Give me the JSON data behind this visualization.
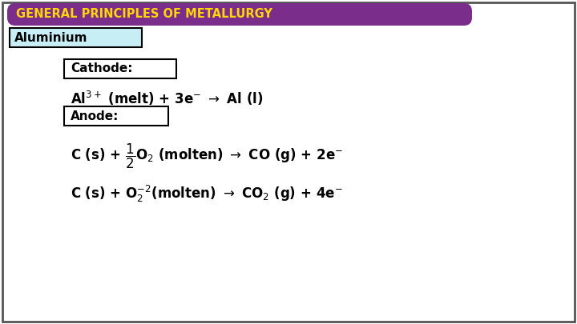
{
  "title": "GENERAL PRINCIPLES OF METALLURGY",
  "title_bg": "#7B2D8B",
  "title_color": "#FFD700",
  "aluminium_label": "Aluminium",
  "aluminium_bg": "#C8EEF5",
  "cathode_label": "Cathode:",
  "anode_label": "Anode:",
  "box_bg": "#FFFFFF",
  "box_edge": "#000000",
  "outer_bg": "#FFFFFF",
  "outer_edge": "#555555",
  "text_color": "#000000",
  "label_color": "#1A1A8C"
}
